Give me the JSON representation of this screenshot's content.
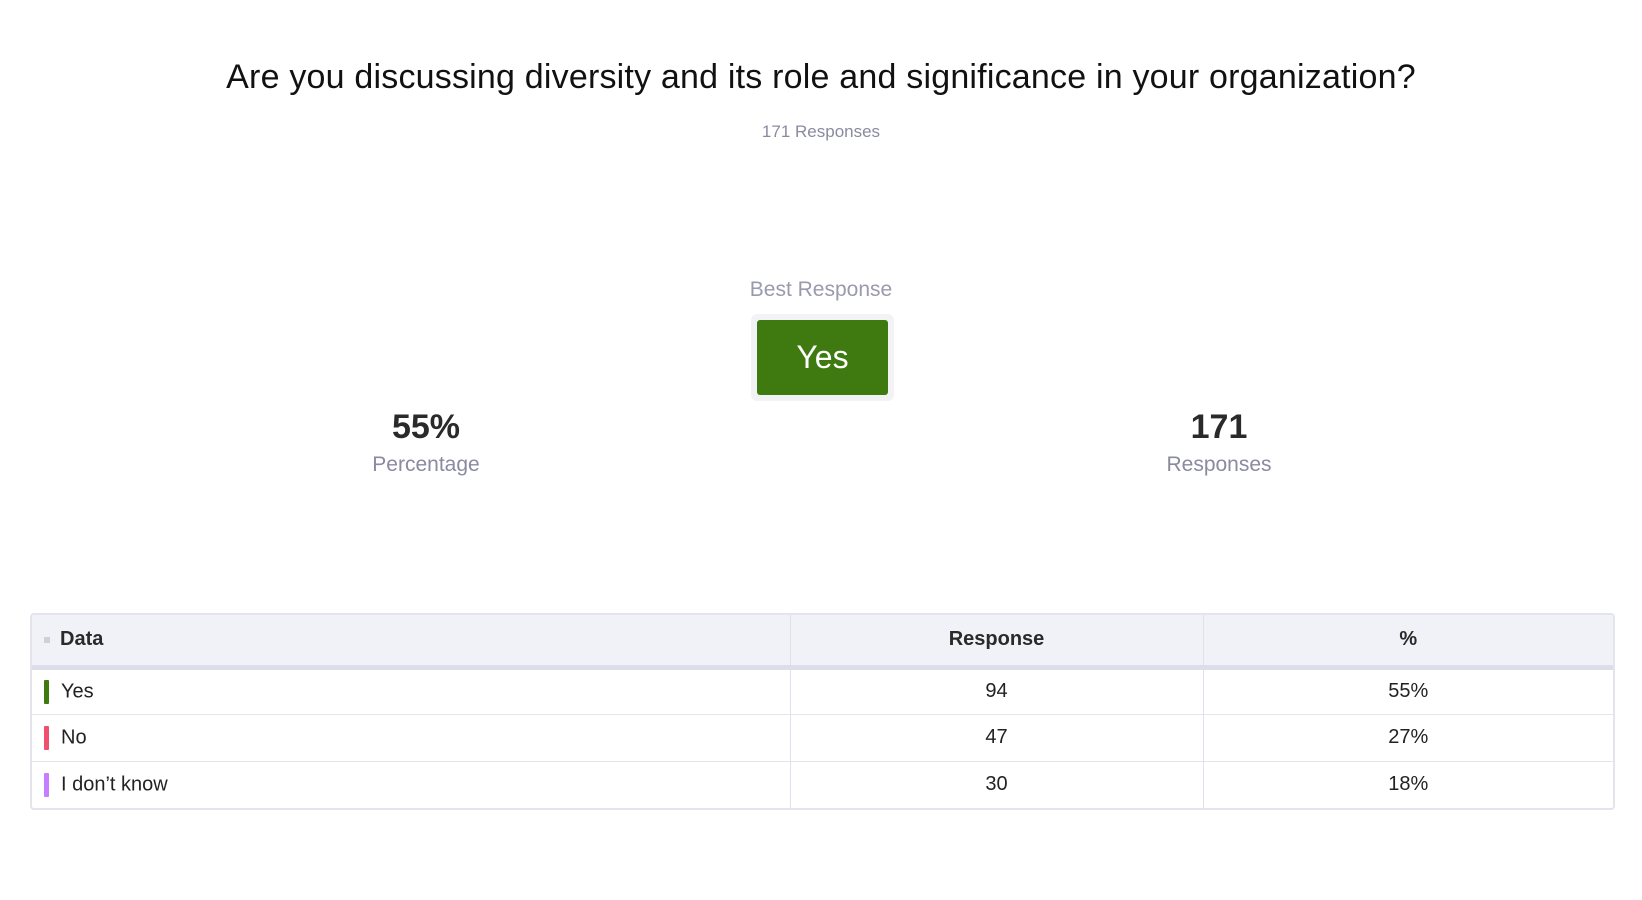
{
  "question": "Are you discussing diversity and its role and significance in your organization?",
  "response_count_text": "171 Responses",
  "best_response": {
    "label": "Best Response",
    "value": "Yes",
    "color": "#3f7a10"
  },
  "stats": {
    "percentage": {
      "value": "55%",
      "label": "Percentage"
    },
    "responses": {
      "value": "171",
      "label": "Responses"
    }
  },
  "table": {
    "headers": {
      "data": "Data",
      "response": "Response",
      "percent": "%"
    },
    "rows": [
      {
        "label": "Yes",
        "response": "94",
        "percent": "55%",
        "color": "#3f7a10"
      },
      {
        "label": "No",
        "response": "47",
        "percent": "27%",
        "color": "#f0506e"
      },
      {
        "label": "I don’t know",
        "response": "30",
        "percent": "18%",
        "color": "#c77dff"
      }
    ]
  }
}
